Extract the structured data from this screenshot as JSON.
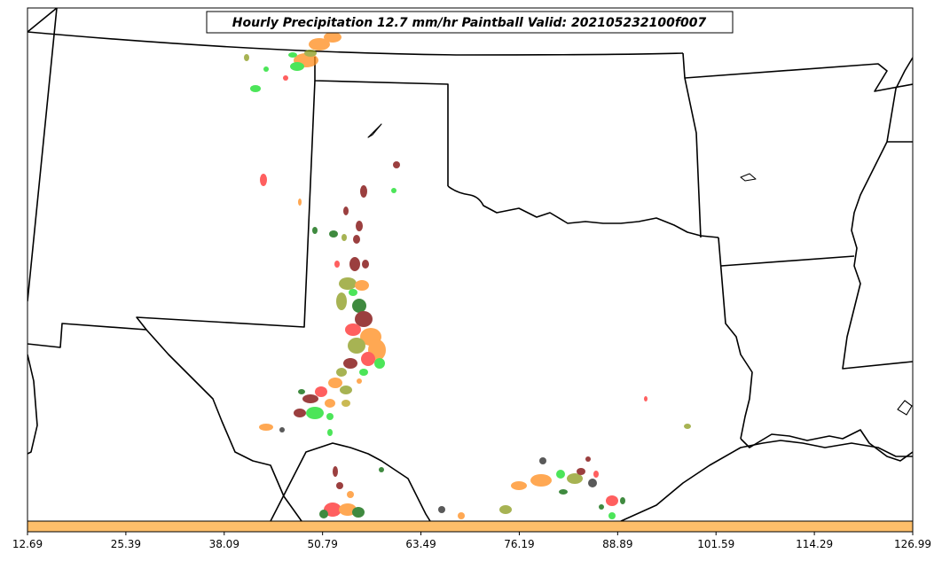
{
  "title": "Hourly Precipitation 12.7 mm/hr Paintball Valid: 202105232100f007",
  "colors": {
    "colorbar": "#fdbe6a",
    "members": [
      "#ff2a2a",
      "#ff8c1a",
      "#11dd22",
      "#006400",
      "#7a0000",
      "#8a9a1a",
      "#222222",
      "#b9a21a"
    ]
  },
  "colorbar_ticks": [
    "12.69",
    "25.39",
    "38.09",
    "50.79",
    "63.49",
    "76.19",
    "88.89",
    "101.59",
    "114.29",
    "126.99"
  ]
}
